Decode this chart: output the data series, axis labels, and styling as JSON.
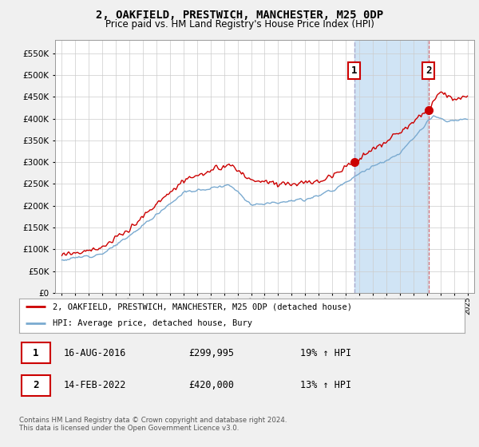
{
  "title": "2, OAKFIELD, PRESTWICH, MANCHESTER, M25 0DP",
  "subtitle": "Price paid vs. HM Land Registry's House Price Index (HPI)",
  "ytick_values": [
    0,
    50000,
    100000,
    150000,
    200000,
    250000,
    300000,
    350000,
    400000,
    450000,
    500000,
    550000
  ],
  "ylim": [
    0,
    580000
  ],
  "xlim_start": 1994.5,
  "xlim_end": 2025.5,
  "sale1_date": 2016.62,
  "sale1_price": 299995,
  "sale2_date": 2022.12,
  "sale2_price": 420000,
  "legend_line1": "2, OAKFIELD, PRESTWICH, MANCHESTER, M25 0DP (detached house)",
  "legend_line2": "HPI: Average price, detached house, Bury",
  "table_row1_num": "1",
  "table_row1_date": "16-AUG-2016",
  "table_row1_price": "£299,995",
  "table_row1_hpi": "19% ↑ HPI",
  "table_row2_num": "2",
  "table_row2_date": "14-FEB-2022",
  "table_row2_price": "£420,000",
  "table_row2_hpi": "13% ↑ HPI",
  "footer": "Contains HM Land Registry data © Crown copyright and database right 2024.\nThis data is licensed under the Open Government Licence v3.0.",
  "red_color": "#cc0000",
  "blue_color": "#7aaad0",
  "vline_color": "#aaaacc",
  "span_color": "#d0e4f5",
  "bg_color": "#f0f0f0",
  "plot_bg": "#ffffff",
  "grid_color": "#cccccc"
}
